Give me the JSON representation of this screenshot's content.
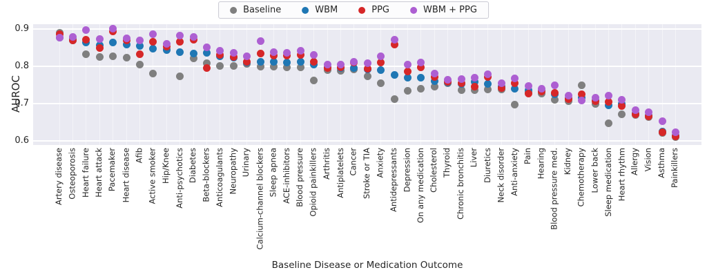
{
  "chart_data": {
    "type": "scatter",
    "title": "",
    "xlabel": "Baseline Disease or Medication Outcome",
    "ylabel": "AUROC",
    "ylim": [
      0.588,
      0.912
    ],
    "yticks": [
      0.9,
      0.8,
      0.7,
      0.6
    ],
    "grid": true,
    "legend_position": "top-center",
    "plot_background": "#eaeaf2",
    "categories": [
      "Artery disease",
      "Osteoporosis",
      "Heart failure",
      "Heart attack",
      "Pacemaker",
      "Heart disease",
      "Afib",
      "Active smoker",
      "Hip/Knee",
      "Anti-psychotics",
      "Diabetes",
      "Beta-blockers",
      "Anticoagulants",
      "Neuropathy",
      "Urinary",
      "Calcium-channel blockers",
      "Sleep apnea",
      "ACE-inhibitors",
      "Blood pressure",
      "Opioid painkillers",
      "Arthritis",
      "Antiplatelets",
      "Cancer",
      "Stroke or TIA",
      "Anxiety",
      "Antidepressants",
      "Depression",
      "On any medication",
      "Cholesterol",
      "Thyroid",
      "Chronic bronchitis",
      "Liver",
      "Diuretics",
      "Neck disorder",
      "Anti-anxiety",
      "Pain",
      "Hearing",
      "Blood pressure med.",
      "Kidney",
      "Chemotherapy",
      "Lower back",
      "Sleep medication",
      "Heart rhythm",
      "Allergy",
      "Vision",
      "Asthma",
      "Painkillers"
    ],
    "series": [
      {
        "name": "Baseline",
        "color": "#7f7f7f",
        "values": [
          0.89,
          0.873,
          0.831,
          0.824,
          0.826,
          0.823,
          0.804,
          0.78,
          0.845,
          0.773,
          0.82,
          0.808,
          0.801,
          0.801,
          0.806,
          0.799,
          0.798,
          0.797,
          0.796,
          0.761,
          0.789,
          0.788,
          0.791,
          0.772,
          0.755,
          0.712,
          0.734,
          0.74,
          0.745,
          0.754,
          0.735,
          0.735,
          0.737,
          0.738,
          0.697,
          0.73,
          0.726,
          0.709,
          0.706,
          0.748,
          0.699,
          0.647,
          0.67,
          0.668,
          0.663,
          0.621,
          0.61
        ]
      },
      {
        "name": "WBM",
        "color": "#1f77b4",
        "values": [
          0.877,
          0.869,
          0.864,
          0.856,
          0.864,
          0.857,
          0.854,
          0.847,
          0.843,
          0.837,
          0.834,
          0.835,
          0.827,
          0.822,
          0.81,
          0.812,
          0.811,
          0.809,
          0.811,
          0.804,
          0.797,
          0.794,
          0.794,
          0.791,
          0.789,
          0.776,
          0.769,
          0.768,
          0.759,
          0.756,
          0.752,
          0.758,
          0.752,
          0.745,
          0.739,
          0.735,
          0.734,
          0.725,
          0.714,
          0.716,
          0.708,
          0.694,
          0.698,
          0.673,
          0.667,
          0.625,
          0.613
        ]
      },
      {
        "name": "PPG",
        "color": "#d62728",
        "values": [
          0.885,
          0.868,
          0.871,
          0.848,
          0.893,
          0.869,
          0.831,
          0.865,
          0.852,
          0.865,
          0.87,
          0.794,
          0.83,
          0.824,
          0.812,
          0.834,
          0.828,
          0.828,
          0.83,
          0.812,
          0.794,
          0.797,
          0.809,
          0.793,
          0.81,
          0.858,
          0.785,
          0.797,
          0.77,
          0.758,
          0.754,
          0.745,
          0.77,
          0.742,
          0.755,
          0.727,
          0.731,
          0.728,
          0.712,
          0.724,
          0.706,
          0.705,
          0.693,
          0.67,
          0.665,
          0.623,
          0.611
        ]
      },
      {
        "name": "WBM + PPG",
        "color": "#ad5fd2",
        "values": [
          0.876,
          0.878,
          0.896,
          0.872,
          0.9,
          0.875,
          0.868,
          0.885,
          0.86,
          0.881,
          0.878,
          0.851,
          0.841,
          0.836,
          0.826,
          0.867,
          0.838,
          0.836,
          0.841,
          0.83,
          0.804,
          0.804,
          0.811,
          0.807,
          0.826,
          0.871,
          0.804,
          0.81,
          0.78,
          0.763,
          0.766,
          0.768,
          0.778,
          0.755,
          0.767,
          0.746,
          0.74,
          0.749,
          0.721,
          0.707,
          0.716,
          0.721,
          0.709,
          0.681,
          0.676,
          0.653,
          0.622
        ]
      }
    ]
  }
}
